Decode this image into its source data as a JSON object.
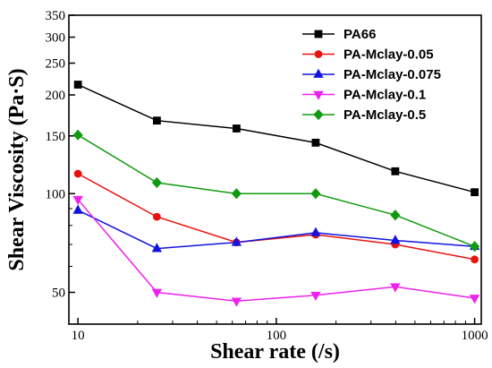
{
  "chart_data": {
    "type": "line",
    "xlabel": "Shear rate (/s)",
    "ylabel": "Shear Viscosity (Pa·S)",
    "x_scale": "log",
    "y_scale": "log",
    "xlim": [
      9,
      1080
    ],
    "ylim": [
      40,
      350
    ],
    "x_ticks": [
      {
        "value": 10,
        "label": "10"
      },
      {
        "value": 100,
        "label": "100"
      },
      {
        "value": 1000,
        "label": "1000"
      }
    ],
    "y_ticks": [
      {
        "value": 50,
        "label": "50"
      },
      {
        "value": 100,
        "label": "100"
      },
      {
        "value": 150,
        "label": "150"
      },
      {
        "value": 200,
        "label": "200"
      },
      {
        "value": 250,
        "label": "250"
      },
      {
        "value": 300,
        "label": "300"
      },
      {
        "value": 350,
        "label": "350"
      }
    ],
    "legend_position": "top-right",
    "grid": false,
    "x": [
      10,
      25,
      63,
      158,
      398,
      1000
    ],
    "series": [
      {
        "name": "PA66",
        "color": "#000000",
        "marker": "square",
        "values": [
          215,
          167,
          158,
          143,
          117,
          101
        ]
      },
      {
        "name": "PA-Mclay-0.05",
        "color": "#e8130f",
        "marker": "circle",
        "values": [
          115,
          85,
          71,
          75,
          70,
          63
        ]
      },
      {
        "name": "PA-Mclay-0.075",
        "color": "#1414e0",
        "marker": "triangle-up",
        "values": [
          89,
          68,
          71,
          76,
          72,
          69
        ]
      },
      {
        "name": "PA-Mclay-0.1",
        "color": "#ee22ee",
        "marker": "triangle-down",
        "values": [
          96,
          50,
          47,
          49,
          52,
          48
        ]
      },
      {
        "name": "PA-Mclay-0.5",
        "color": "#109a10",
        "marker": "diamond",
        "values": [
          151,
          108,
          100,
          100,
          86,
          69
        ]
      }
    ]
  }
}
